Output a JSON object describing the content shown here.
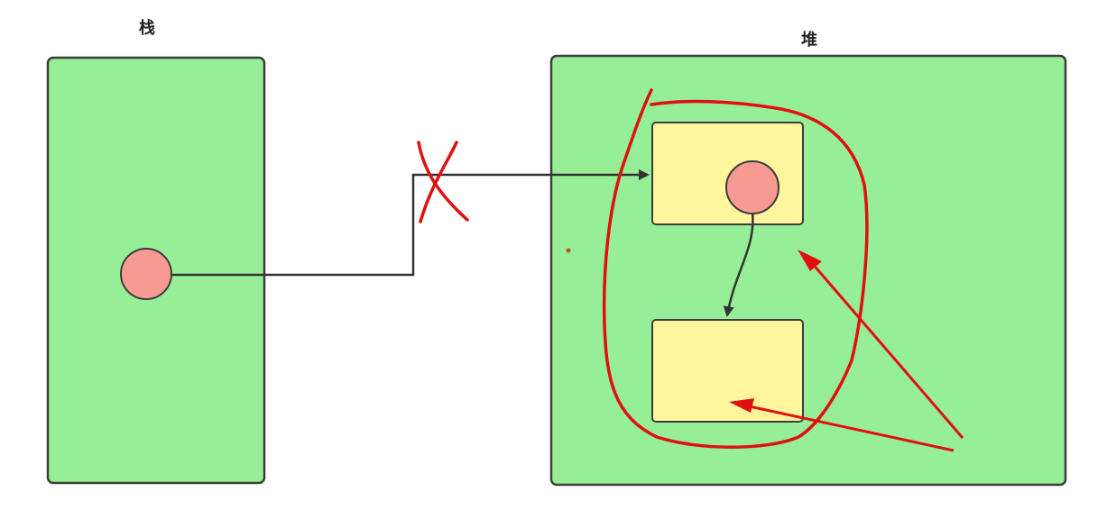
{
  "diagram": {
    "stack": {
      "title": "栈"
    },
    "heap": {
      "title": "堆"
    },
    "colors": {
      "region_fill": "#96ee96",
      "region_stroke": "#3c3c3c",
      "object_fill": "#fff59c",
      "reference_fill": "#f79a94",
      "line": "#333333",
      "annotation_red": "#e01010"
    },
    "annotations": {
      "reference_cut": true,
      "garbage_group_circled": true,
      "pointer_arrows": 2
    }
  }
}
